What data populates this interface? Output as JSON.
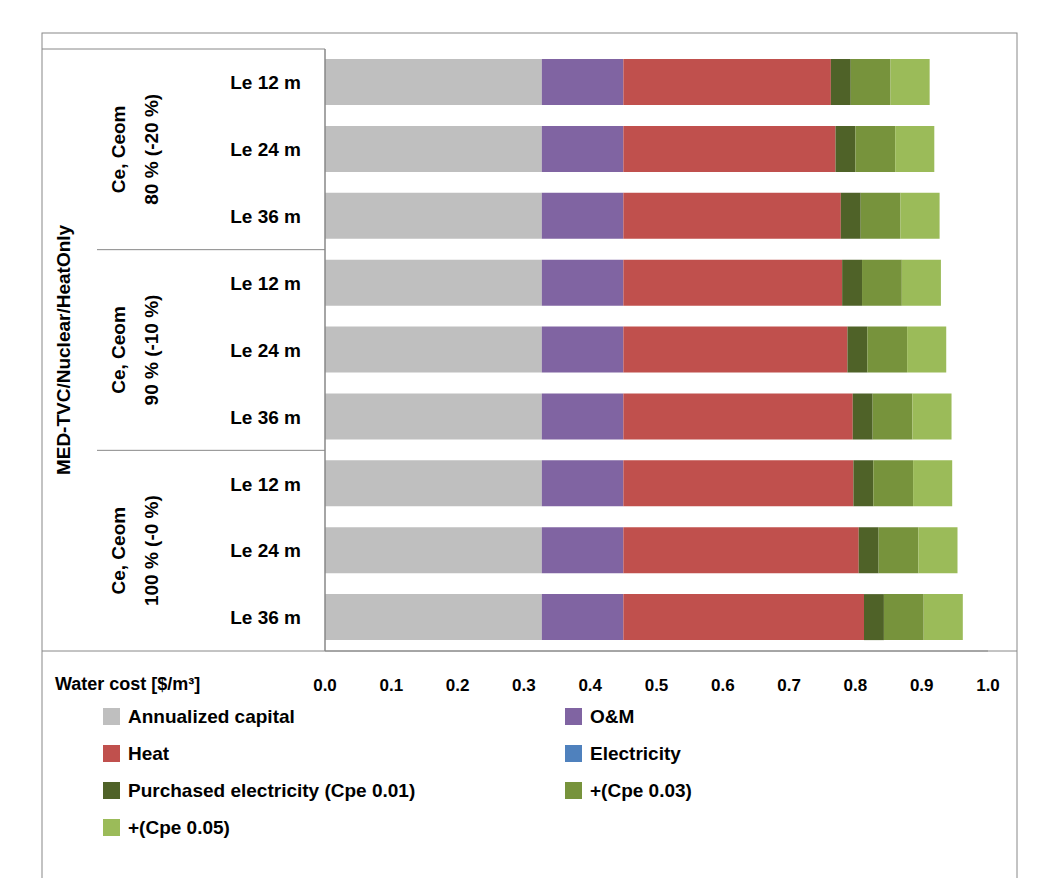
{
  "chart_data": {
    "type": "bar",
    "orientation": "horizontal",
    "stacked": true,
    "grid": false,
    "legend": "bottom",
    "group_title": "MED-TVC/Nuclear/HeatOnly",
    "category_groups": [
      {
        "label": "Ce, Ceom",
        "sublabel": "80 % (-20 %)"
      },
      {
        "label": "Ce, Ceom",
        "sublabel": "90 % (-10 %)"
      },
      {
        "label": "Ce, Ceom",
        "sublabel": "100 % (-0 %)"
      }
    ],
    "categories": [
      "Le 12 m",
      "Le 24 m",
      "Le 36 m",
      "Le 12 m",
      "Le 24 m",
      "Le 36 m",
      "Le 12 m",
      "Le 24 m",
      "Le 36 m"
    ],
    "x_label": "Water cost [$/m³]",
    "xlim": [
      0,
      1
    ],
    "xticks": [
      {
        "value": 0,
        "label": "0.0"
      },
      0.1,
      0.2,
      0.3,
      0.4,
      0.5,
      0.6,
      0.7,
      0.8,
      0.9,
      {
        "value": 1,
        "label": "1.0"
      }
    ],
    "series": [
      {
        "name": "Annualized capital",
        "color": "#bfbfbf",
        "values": [
          0.327,
          0.327,
          0.327,
          0.327,
          0.327,
          0.327,
          0.327,
          0.327,
          0.327
        ]
      },
      {
        "name": "O&M",
        "color": "#8064a2",
        "values": [
          0.123,
          0.123,
          0.123,
          0.123,
          0.123,
          0.123,
          0.123,
          0.123,
          0.123
        ]
      },
      {
        "name": "Heat",
        "color": "#c0504d",
        "values": [
          0.313,
          0.32,
          0.328,
          0.33,
          0.338,
          0.346,
          0.347,
          0.355,
          0.363
        ]
      },
      {
        "name": "Electricity",
        "color": "#4f81bd",
        "values": [
          0,
          0,
          0,
          0,
          0,
          0,
          0,
          0,
          0
        ]
      },
      {
        "name": "Purchased electricity (Cpe 0.01)",
        "color": "#4f6228",
        "values": [
          0.03,
          0.03,
          0.03,
          0.03,
          0.03,
          0.03,
          0.03,
          0.03,
          0.03
        ]
      },
      {
        "name": "+(Cpe 0.03)",
        "color": "#77933c",
        "values": [
          0.06,
          0.06,
          0.06,
          0.06,
          0.06,
          0.06,
          0.06,
          0.06,
          0.06
        ]
      },
      {
        "name": "+(Cpe 0.05)",
        "color": "#9bbb59",
        "values": [
          0.059,
          0.059,
          0.059,
          0.059,
          0.059,
          0.059,
          0.059,
          0.059,
          0.059
        ]
      }
    ]
  }
}
